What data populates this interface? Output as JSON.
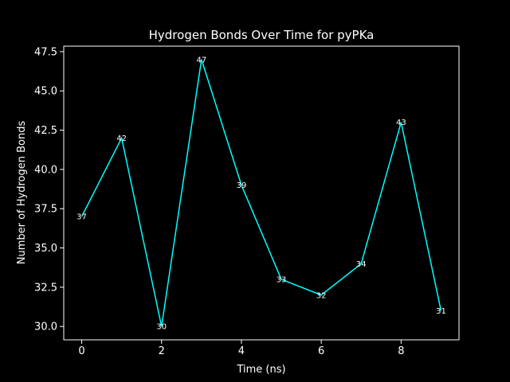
{
  "chart_data": {
    "type": "line",
    "title": "Hydrogen Bonds Over Time for pyPKa",
    "xlabel": "Time (ns)",
    "ylabel": "Number of Hydrogen Bonds",
    "x": [
      0,
      1,
      2,
      3,
      4,
      5,
      6,
      7,
      8,
      9
    ],
    "series": [
      {
        "values": [
          37,
          42,
          30,
          47,
          39,
          33,
          32,
          34,
          43,
          31
        ],
        "color": "#00ffff"
      }
    ],
    "data_labels": [
      "37",
      "42",
      "30",
      "47",
      "39",
      "33",
      "32",
      "34",
      "43",
      "31"
    ],
    "xlim": [
      -0.45,
      9.45
    ],
    "ylim": [
      29.15,
      47.85
    ],
    "xticks": [
      0,
      2,
      4,
      6,
      8
    ],
    "xtick_labels": [
      "0",
      "2",
      "4",
      "6",
      "8"
    ],
    "yticks": [
      30.0,
      32.5,
      35.0,
      37.5,
      40.0,
      42.5,
      45.0,
      47.5
    ],
    "ytick_labels": [
      "30.0",
      "32.5",
      "35.0",
      "37.5",
      "40.0",
      "42.5",
      "45.0",
      "47.5"
    ],
    "grid": false,
    "legend": "none",
    "colors": {
      "background": "#000000",
      "axes": "#ffffff",
      "text": "#ffffff",
      "line": "#00ffff"
    }
  }
}
